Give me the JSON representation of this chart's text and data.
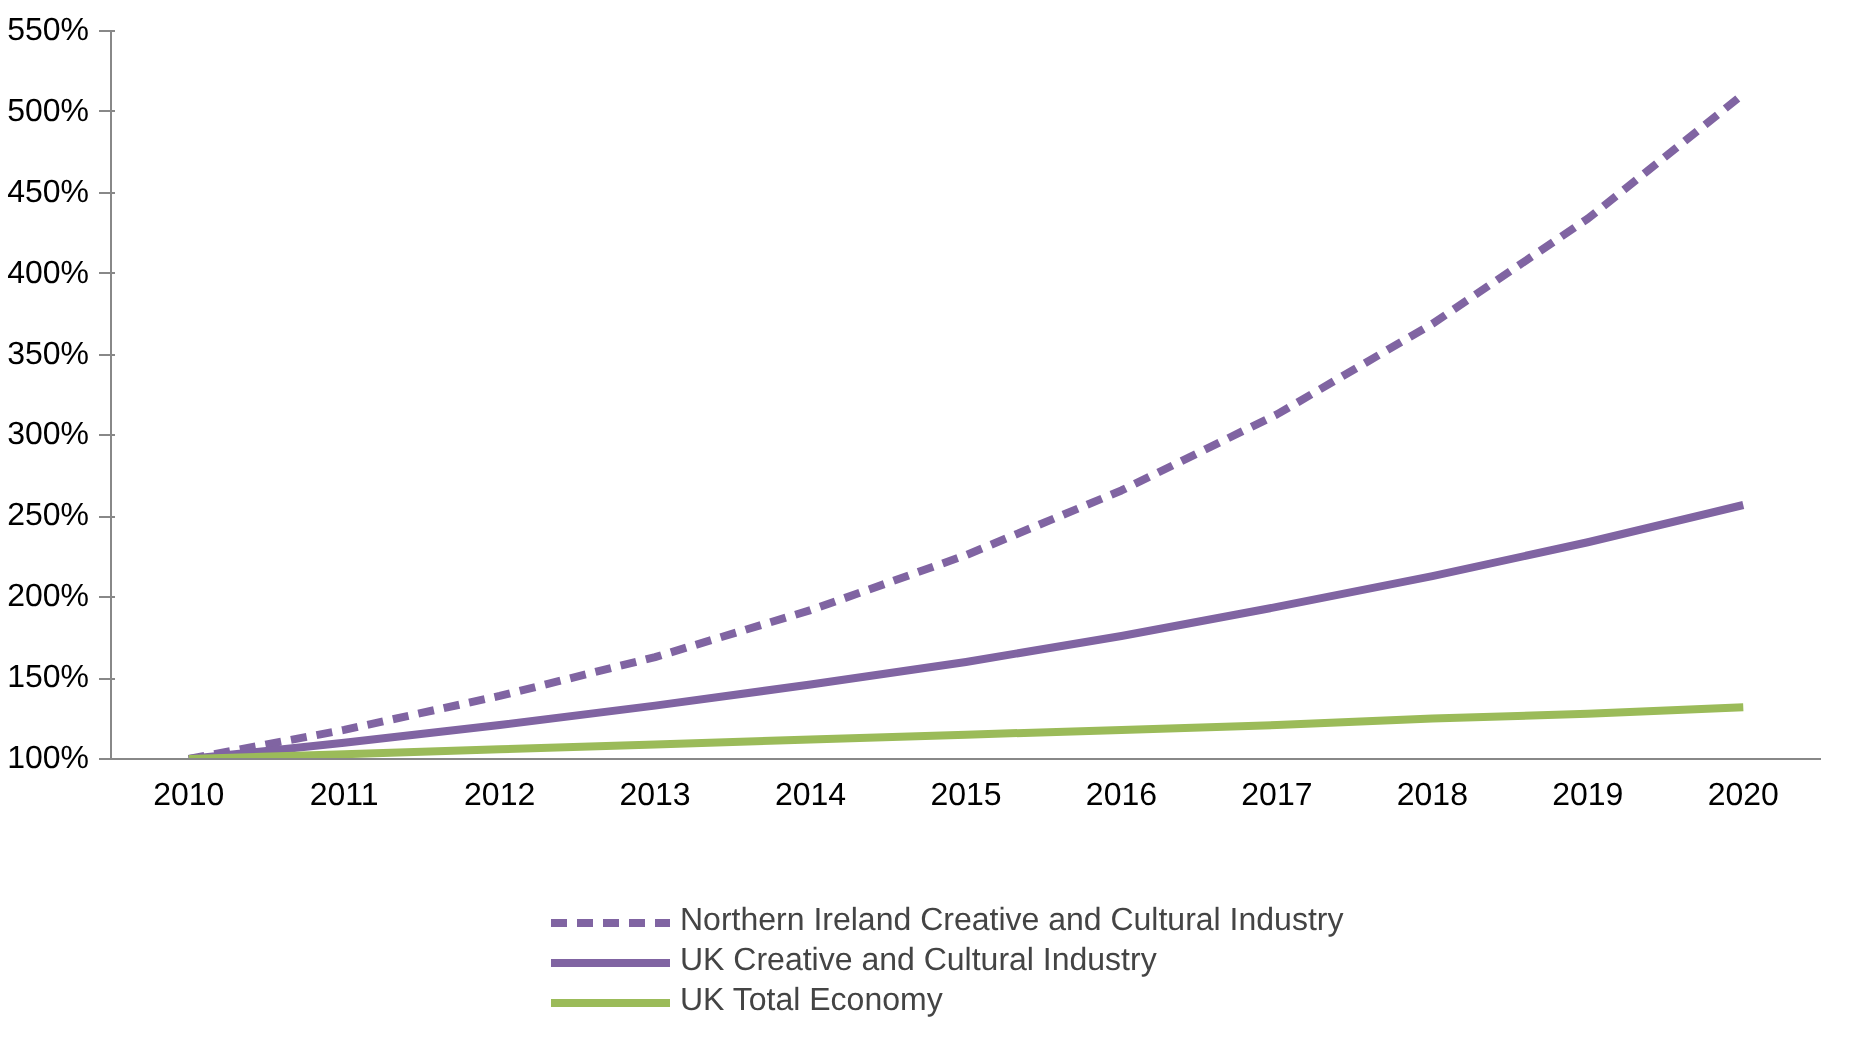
{
  "chart_data": {
    "type": "line",
    "categories": [
      "2010",
      "2011",
      "2012",
      "2013",
      "2014",
      "2015",
      "2016",
      "2017",
      "2018",
      "2019",
      "2020"
    ],
    "series": [
      {
        "name": "Northern Ireland Creative and Cultural Industry",
        "color": "#8064a2",
        "line_style": "dashed",
        "values": [
          100,
          118,
          139,
          163,
          192,
          226,
          266,
          313,
          369,
          434,
          511
        ]
      },
      {
        "name": "UK Creative and Cultural Industry",
        "color": "#8064a2",
        "line_style": "solid",
        "values": [
          100,
          110,
          121,
          133,
          146,
          160,
          176,
          194,
          213,
          234,
          257
        ]
      },
      {
        "name": "UK Total Economy",
        "color": "#9bbb59",
        "line_style": "solid",
        "values": [
          100,
          103,
          106,
          109,
          112,
          115,
          118,
          121,
          125,
          128,
          132
        ]
      }
    ],
    "ylim": [
      100,
      550
    ],
    "yticks": [
      {
        "value": 100,
        "label": "100%"
      },
      {
        "value": 150,
        "label": "150%"
      },
      {
        "value": 200,
        "label": "200%"
      },
      {
        "value": 250,
        "label": "250%"
      },
      {
        "value": 300,
        "label": "300%"
      },
      {
        "value": 350,
        "label": "350%"
      },
      {
        "value": 400,
        "label": "400%"
      },
      {
        "value": 450,
        "label": "450%"
      },
      {
        "value": 500,
        "label": "500%"
      },
      {
        "value": 550,
        "label": "550%"
      }
    ],
    "grid": false,
    "legend": "bottom",
    "marker": "none"
  }
}
